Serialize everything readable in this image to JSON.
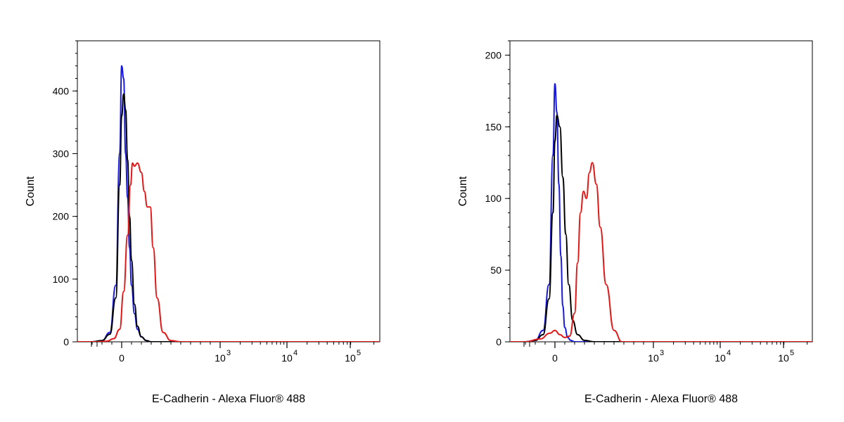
{
  "colors": {
    "blue": "#1a1adc",
    "black": "#000000",
    "red": "#e01818",
    "axis": "#000000"
  },
  "chart_data": [
    {
      "type": "line",
      "title": "",
      "xlabel": "E-Cadherin - Alexa Fluor® 488",
      "ylabel": "Count",
      "x_scale": "biexponential",
      "xlim": [
        -1000,
        200000
      ],
      "ylim": [
        0,
        480
      ],
      "y_ticks": [
        "0",
        "100",
        "200",
        "300",
        "400"
      ],
      "x_tick_labels": [
        {
          "base": "0",
          "exp": ""
        },
        {
          "base": "10",
          "exp": "3"
        },
        {
          "base": "10",
          "exp": "4"
        },
        {
          "base": "10",
          "exp": "5"
        }
      ],
      "grid": false,
      "series": [
        {
          "color": "blue",
          "x": [
            -300,
            -200,
            -120,
            -60,
            -20,
            0,
            20,
            40,
            60,
            80,
            100,
            130,
            160,
            200,
            250,
            300,
            400
          ],
          "y": [
            0,
            2,
            15,
            90,
            300,
            440,
            420,
            300,
            230,
            150,
            90,
            45,
            20,
            8,
            2,
            0,
            0
          ]
        },
        {
          "color": "black",
          "x": [
            -300,
            -200,
            -120,
            -60,
            -20,
            0,
            20,
            40,
            60,
            80,
            100,
            130,
            160,
            200,
            250,
            300,
            400
          ],
          "y": [
            0,
            2,
            12,
            70,
            250,
            360,
            395,
            370,
            290,
            200,
            130,
            60,
            25,
            8,
            2,
            0,
            0
          ]
        },
        {
          "color": "red",
          "x": [
            -250,
            -150,
            -80,
            -20,
            20,
            60,
            90,
            110,
            130,
            160,
            200,
            230,
            260,
            290,
            320,
            360,
            420,
            500,
            600
          ],
          "y": [
            0,
            1,
            5,
            20,
            80,
            170,
            250,
            285,
            280,
            285,
            270,
            240,
            215,
            215,
            150,
            70,
            15,
            2,
            0
          ]
        }
      ]
    },
    {
      "type": "line",
      "title": "",
      "xlabel": "E-Cadherin - Alexa Fluor® 488",
      "ylabel": "Count",
      "x_scale": "biexponential",
      "xlim": [
        -1000,
        200000
      ],
      "ylim": [
        0,
        210
      ],
      "y_ticks": [
        "0",
        "50",
        "100",
        "150",
        "200"
      ],
      "x_tick_labels": [
        {
          "base": "0",
          "exp": ""
        },
        {
          "base": "10",
          "exp": "3"
        },
        {
          "base": "10",
          "exp": "4"
        },
        {
          "base": "10",
          "exp": "5"
        }
      ],
      "grid": false,
      "series": [
        {
          "color": "blue",
          "x": [
            -300,
            -200,
            -120,
            -60,
            -20,
            0,
            20,
            40,
            60,
            80,
            100,
            130,
            160,
            200,
            300
          ],
          "y": [
            0,
            1,
            8,
            40,
            130,
            180,
            160,
            110,
            60,
            25,
            10,
            3,
            1,
            0,
            0
          ]
        },
        {
          "color": "black",
          "x": [
            -300,
            -200,
            -120,
            -60,
            -20,
            0,
            20,
            50,
            80,
            110,
            140,
            180,
            230,
            300,
            400,
            500
          ],
          "y": [
            0,
            1,
            5,
            30,
            90,
            140,
            158,
            150,
            115,
            75,
            40,
            15,
            5,
            1,
            0,
            0
          ]
        },
        {
          "color": "red",
          "x": [
            -300,
            -150,
            -50,
            0,
            50,
            100,
            150,
            200,
            230,
            260,
            290,
            320,
            350,
            380,
            420,
            460,
            520,
            600,
            680
          ],
          "y": [
            0,
            2,
            6,
            8,
            5,
            3,
            4,
            20,
            55,
            90,
            105,
            100,
            118,
            125,
            110,
            80,
            40,
            8,
            0
          ]
        }
      ]
    }
  ]
}
